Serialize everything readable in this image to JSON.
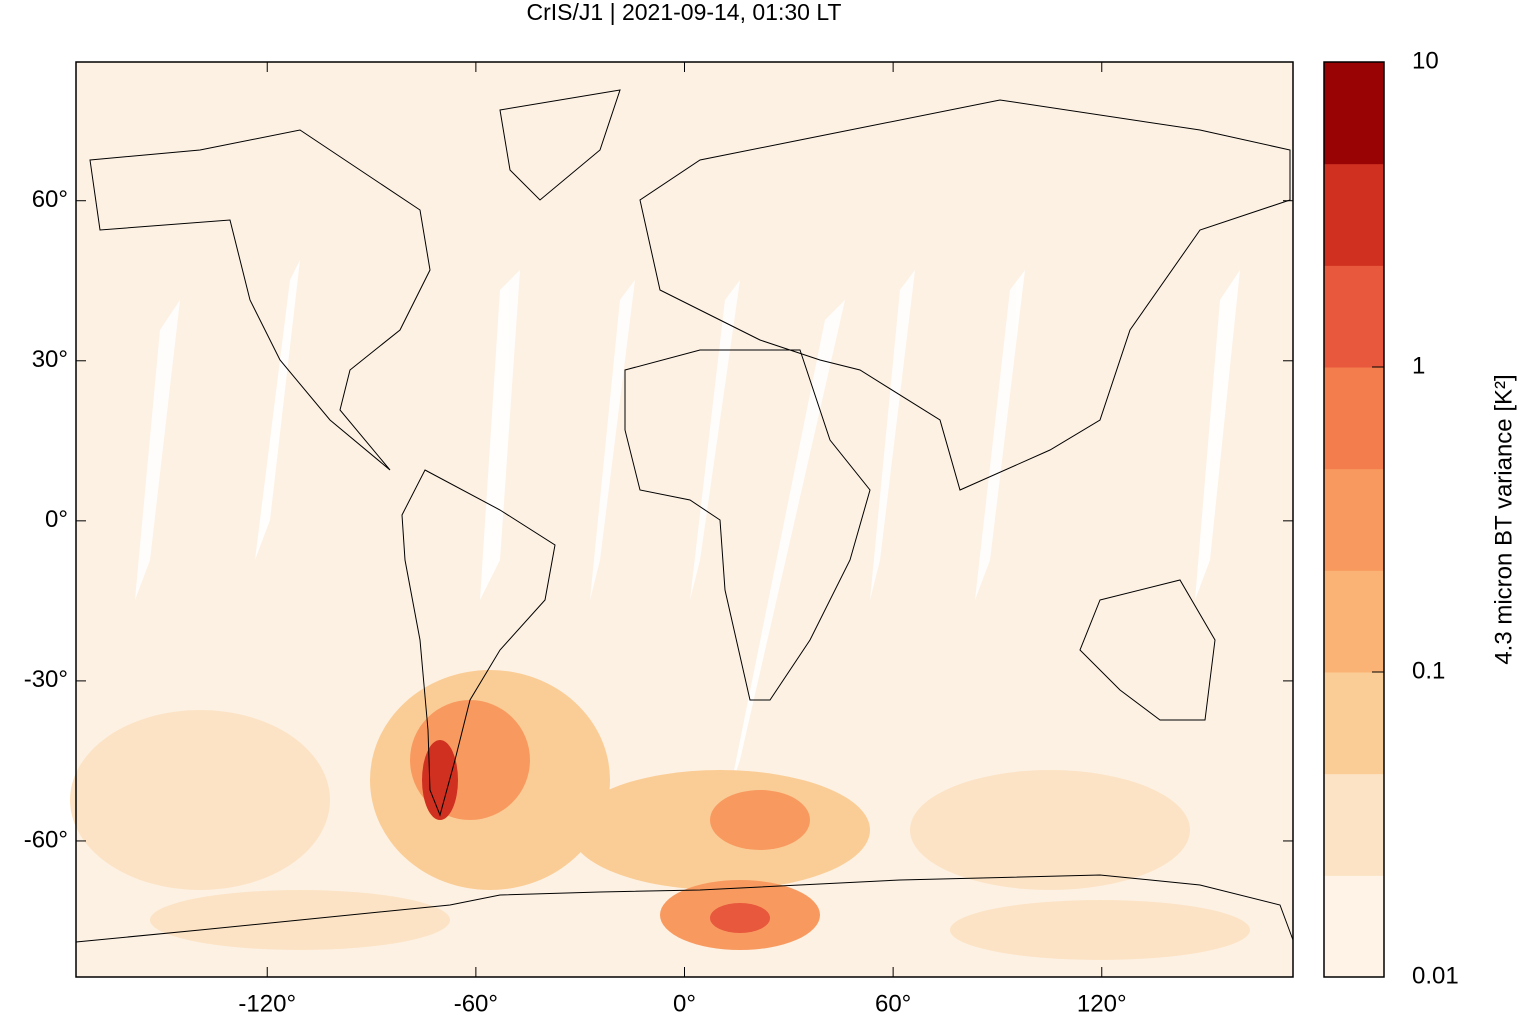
{
  "chart_data": {
    "type": "map",
    "title": "CrIS/J1 | 2021-09-14, 01:30 LT",
    "xlim": [
      -175,
      175
    ],
    "ylim": [
      -85.5,
      86
    ],
    "xticks": [
      {
        "value": -120,
        "label": "-120°"
      },
      {
        "value": -60,
        "label": "-60°"
      },
      {
        "value": 0,
        "label": "0°"
      },
      {
        "value": 60,
        "label": "60°"
      },
      {
        "value": 120,
        "label": "120°"
      }
    ],
    "yticks": [
      {
        "value": -60,
        "label": "-60°"
      },
      {
        "value": -30,
        "label": "-30°"
      },
      {
        "value": 0,
        "label": "0°"
      },
      {
        "value": 30,
        "label": "30°"
      },
      {
        "value": 60,
        "label": "60°"
      }
    ],
    "colorbar": {
      "label": "4.3 micron BT variance [K²]",
      "log": true,
      "lim": [
        0.01,
        10
      ],
      "ticks": [
        0.01,
        0.1,
        1,
        10
      ],
      "colors": [
        "#fef3e6",
        "#fce3c5",
        "#fbcd96",
        "#fab275",
        "#f89a60",
        "#f37d4c",
        "#e8583c",
        "#cf3020",
        "#9a0303"
      ]
    }
  }
}
